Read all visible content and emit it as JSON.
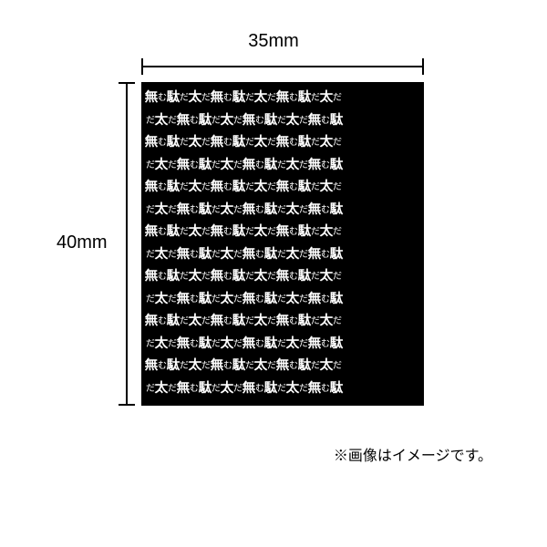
{
  "dimensions": {
    "width_label": "35mm",
    "height_label": "40mm"
  },
  "stamp": {
    "rows": 14,
    "big_chars": [
      "無",
      "駄",
      "太"
    ],
    "small_chars": [
      "む",
      "だ"
    ],
    "sequence": [
      "無",
      "む",
      "駄",
      "だ",
      "太",
      "だ",
      "無",
      "む",
      "駄",
      "だ",
      "太",
      "だ",
      "無",
      "む",
      "駄",
      "だ",
      "太",
      "だ"
    ],
    "bg_color": "#000000",
    "text_color": "#ffffff",
    "big_fontsize": 14,
    "small_fontsize": 10
  },
  "note": "※画像はイメージです。",
  "colors": {
    "page_bg": "#ffffff",
    "ruler": "#000000",
    "text": "#000000"
  }
}
